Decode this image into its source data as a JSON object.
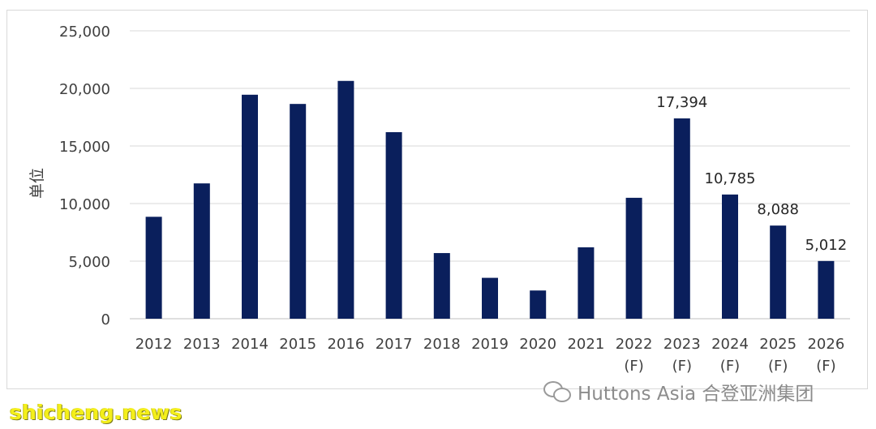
{
  "chart_data": {
    "type": "bar",
    "ylabel": "单位",
    "ylim": [
      0,
      25000
    ],
    "yticks": [
      "0",
      "5,000",
      "10,000",
      "15,000",
      "20,000",
      "25,000"
    ],
    "ytick_values": [
      0,
      5000,
      10000,
      15000,
      20000,
      25000
    ],
    "categories": [
      [
        "2012"
      ],
      [
        "2013"
      ],
      [
        "2014"
      ],
      [
        "2015"
      ],
      [
        "2016"
      ],
      [
        "2017"
      ],
      [
        "2018"
      ],
      [
        "2019"
      ],
      [
        "2020"
      ],
      [
        "2021"
      ],
      [
        "2022",
        "(F)"
      ],
      [
        "2023",
        "(F)"
      ],
      [
        "2024",
        "(F)"
      ],
      [
        "2025",
        "(F)"
      ],
      [
        "2026",
        "(F)"
      ]
    ],
    "values": [
      8850,
      11750,
      19450,
      18650,
      20650,
      16200,
      5700,
      3550,
      2450,
      6200,
      10500,
      17394,
      10785,
      8088,
      5012
    ],
    "data_labels": [
      "",
      "",
      "",
      "",
      "",
      "",
      "",
      "",
      "",
      "",
      "",
      "17,394",
      "10,785",
      "8,088",
      "5,012"
    ],
    "bar_color": "#0a1f5c",
    "grid": true,
    "grid_color": "#d9d9d9"
  },
  "watermark": {
    "brand": "Huttons Asia 合登亚洲集团",
    "icon": "wechat-icon",
    "site": "shicheng.news"
  }
}
